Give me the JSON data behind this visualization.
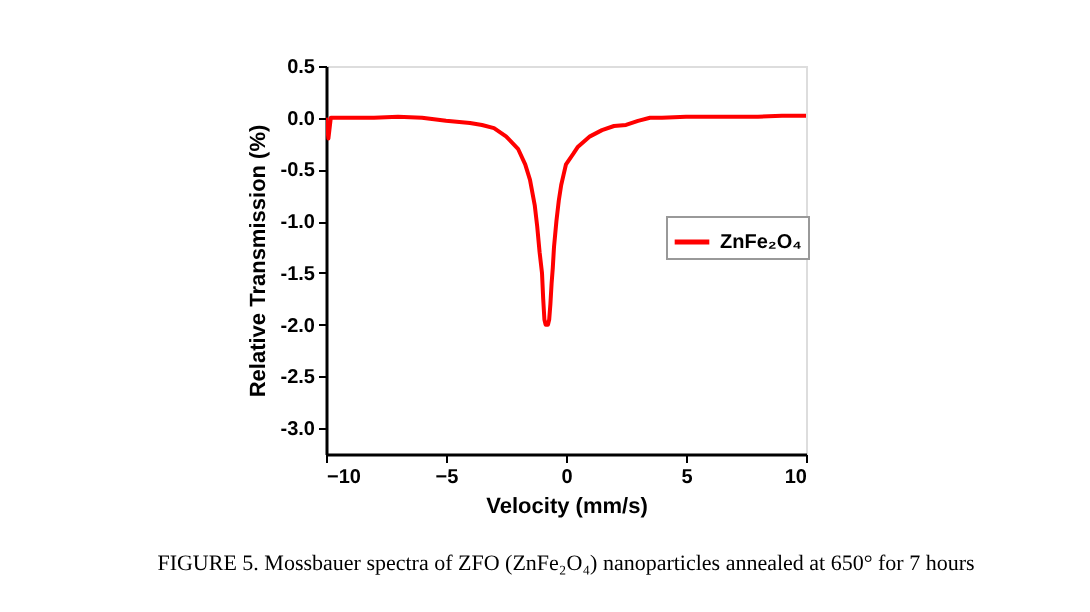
{
  "chart_data": {
    "type": "line",
    "xlabel": "Velocity (mm/s)",
    "ylabel": "Relative Transmission (%)",
    "xlim": [
      -10,
      10
    ],
    "xticks": [
      -10,
      -5,
      0,
      5,
      10
    ],
    "ylim": [
      -3.25,
      0.5
    ],
    "yticks": [
      {
        "value": 0.5,
        "label": "0.5"
      },
      {
        "value": 0,
        "label": "0.0"
      },
      {
        "value": -0.5,
        "label": "-0.5"
      },
      {
        "value": -1,
        "label": "-1.0"
      },
      {
        "value": -1.5,
        "label": "-1.5"
      },
      {
        "value": -2,
        "label": "-2.0"
      },
      {
        "value": -2.5,
        "label": "-2.5"
      },
      {
        "value": -3,
        "label": "-3.0"
      }
    ],
    "grid": false,
    "legend": "right",
    "marker": "none",
    "line_style": "solid",
    "series": [
      {
        "name": "ZnFe₂O₄",
        "color": "#ff0000",
        "x": [
          -10,
          -9.9,
          -9.8,
          -9,
          -8,
          -7,
          -6,
          -5,
          -4,
          -3.5,
          -3,
          -2.5,
          -2,
          -1.7,
          -1.5,
          -1.3,
          -1.2,
          -1.1,
          -1.0,
          -0.95,
          -0.9,
          -0.85,
          -0.8,
          -0.75,
          -0.7,
          -0.65,
          -0.6,
          -0.55,
          -0.5,
          -0.4,
          -0.3,
          -0.2,
          -0.1,
          0,
          0.3,
          0.5,
          1,
          1.5,
          2,
          2.5,
          3,
          3.5,
          4,
          5,
          6,
          7,
          8,
          9,
          10
        ],
        "values": [
          0.0,
          -0.2,
          0.0,
          0.0,
          0.0,
          0.01,
          0.0,
          -0.03,
          -0.05,
          -0.07,
          -0.1,
          -0.18,
          -0.3,
          -0.45,
          -0.6,
          -0.85,
          -1.05,
          -1.3,
          -1.5,
          -1.75,
          -1.95,
          -2.0,
          -2.0,
          -2.0,
          -1.95,
          -1.8,
          -1.6,
          -1.45,
          -1.25,
          -1.0,
          -0.8,
          -0.65,
          -0.55,
          -0.45,
          -0.35,
          -0.28,
          -0.18,
          -0.12,
          -0.08,
          -0.07,
          -0.03,
          0.0,
          0.0,
          0.01,
          0.01,
          0.01,
          0.01,
          0.02,
          0.02
        ]
      }
    ],
    "annotations": [
      "FIGURE 5. Mossbauer spectra of ZFO (ZnFe₂O₄) nanoparticles annealed at 650° for 7 hours"
    ]
  }
}
